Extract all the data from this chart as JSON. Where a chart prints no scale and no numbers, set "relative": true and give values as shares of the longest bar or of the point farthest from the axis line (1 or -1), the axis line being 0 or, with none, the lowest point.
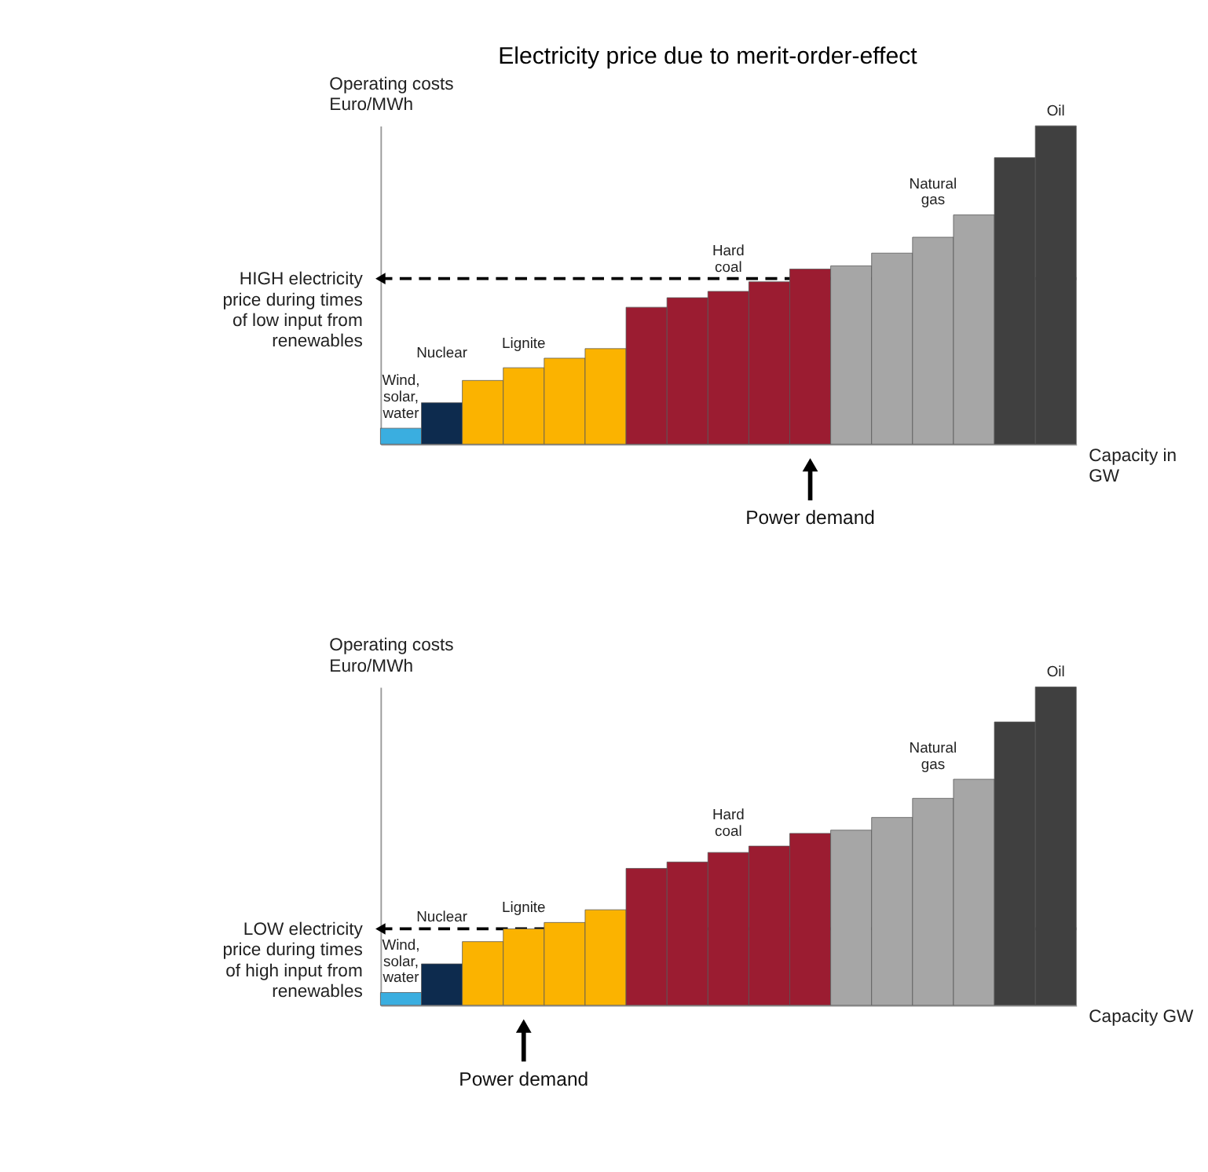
{
  "chart_data": [
    {
      "type": "bar",
      "title": "Electricity price due to merit-order-effect",
      "relative": true,
      "ylabel": "Operating costs Euro/MWh",
      "xlabel": "Capacity in GW",
      "categories": [
        "Wind, solar, water",
        "Nuclear",
        null,
        "Lignite",
        null,
        null,
        null,
        null,
        "Hard coal",
        null,
        null,
        null,
        null,
        "Natural gas",
        null,
        null,
        "Oil"
      ],
      "values": [
        0.05,
        0.13,
        0.2,
        0.24,
        0.27,
        0.3,
        0.43,
        0.46,
        0.48,
        0.51,
        0.55,
        0.56,
        0.6,
        0.65,
        0.72,
        0.9,
        1.0
      ],
      "colors": [
        "#3aaee0",
        "#0d2b4e",
        "#fbb300",
        "#fbb300",
        "#fbb300",
        "#fbb300",
        "#9b1c31",
        "#9b1c31",
        "#9b1c31",
        "#9b1c31",
        "#9b1c31",
        "#a6a6a6",
        "#a6a6a6",
        "#a6a6a6",
        "#a6a6a6",
        "#404040",
        "#404040"
      ],
      "ref_lines": [
        {
          "axis": "y",
          "value": 0.52,
          "label": "HIGH electricity price during times of low input from renewables",
          "line_style": "dashed",
          "color": "#000000"
        }
      ],
      "annotations": [
        "Power demand"
      ]
    },
    {
      "type": "bar",
      "relative": true,
      "ylabel": "Operating costs Euro/MWh",
      "xlabel": "Capacity GW",
      "categories": [
        "Wind, solar, water",
        "Nuclear",
        null,
        "Lignite",
        null,
        null,
        null,
        null,
        "Hard coal",
        null,
        null,
        null,
        null,
        "Natural gas",
        null,
        null,
        "Oil"
      ],
      "values": [
        0.04,
        0.13,
        0.2,
        0.24,
        0.26,
        0.3,
        0.43,
        0.45,
        0.48,
        0.5,
        0.54,
        0.55,
        0.59,
        0.65,
        0.71,
        0.89,
        1.0
      ],
      "colors": [
        "#3aaee0",
        "#0d2b4e",
        "#fbb300",
        "#fbb300",
        "#fbb300",
        "#fbb300",
        "#9b1c31",
        "#9b1c31",
        "#9b1c31",
        "#9b1c31",
        "#9b1c31",
        "#a6a6a6",
        "#a6a6a6",
        "#a6a6a6",
        "#a6a6a6",
        "#404040",
        "#404040"
      ],
      "ref_lines": [
        {
          "axis": "y",
          "value": 0.24,
          "label": "LOW electricity price during times of high input from renewables",
          "line_style": "dashed",
          "color": "#000000"
        }
      ],
      "annotations": [
        "Power demand"
      ]
    }
  ]
}
